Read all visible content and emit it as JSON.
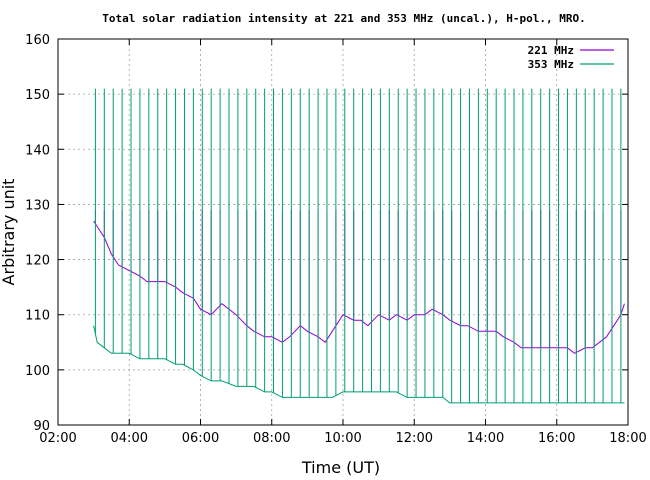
{
  "chart_data": {
    "type": "line",
    "title": "Total solar radiation intensity at 221 and 353 MHz (uncal.), H-pol., MRO.",
    "xlabel": "Time (UT)",
    "ylabel": "Arbitrary unit",
    "xlim_hours": [
      2,
      18
    ],
    "ylim": [
      90,
      160
    ],
    "x_ticks": [
      "02:00",
      "04:00",
      "06:00",
      "08:00",
      "10:00",
      "12:00",
      "14:00",
      "16:00",
      "18:00"
    ],
    "y_ticks": [
      90,
      100,
      110,
      120,
      130,
      140,
      150,
      160
    ],
    "grid": true,
    "legend_position": "top-right",
    "series": [
      {
        "name": "221 MHz",
        "color": "#9400d3",
        "x_hours": [
          3.0,
          3.1,
          3.3,
          3.5,
          3.7,
          4.0,
          4.3,
          4.5,
          5.0,
          5.3,
          5.5,
          5.8,
          6.0,
          6.3,
          6.6,
          7.0,
          7.3,
          7.5,
          7.8,
          8.0,
          8.3,
          8.5,
          8.8,
          9.0,
          9.3,
          9.5,
          9.7,
          10.0,
          10.3,
          10.5,
          10.7,
          11.0,
          11.3,
          11.5,
          11.8,
          12.0,
          12.3,
          12.5,
          12.8,
          13.0,
          13.3,
          13.5,
          13.8,
          14.0,
          14.3,
          14.5,
          14.8,
          15.0,
          15.3,
          15.5,
          15.8,
          16.0,
          16.3,
          16.5,
          16.8,
          17.0,
          17.2,
          17.4,
          17.6,
          17.8,
          17.9
        ],
        "values": [
          127,
          126,
          124,
          121,
          119,
          118,
          117,
          116,
          116,
          115,
          114,
          113,
          111,
          110,
          112,
          110,
          108,
          107,
          106,
          106,
          105,
          106,
          108,
          107,
          106,
          105,
          107,
          110,
          109,
          109,
          108,
          110,
          109,
          110,
          109,
          110,
          110,
          111,
          110,
          109,
          108,
          108,
          107,
          107,
          107,
          106,
          105,
          104,
          104,
          104,
          104,
          104,
          104,
          103,
          104,
          104,
          105,
          106,
          108,
          110,
          112
        ],
        "spike_peak": 129
      },
      {
        "name": "353 MHz",
        "color": "#009e73",
        "x_hours": [
          3.0,
          3.1,
          3.3,
          3.5,
          3.7,
          4.0,
          4.3,
          4.5,
          5.0,
          5.3,
          5.5,
          5.8,
          6.0,
          6.3,
          6.6,
          7.0,
          7.3,
          7.5,
          7.8,
          8.0,
          8.3,
          8.5,
          8.8,
          9.0,
          9.3,
          9.5,
          9.7,
          10.0,
          10.3,
          10.5,
          10.7,
          11.0,
          11.3,
          11.5,
          11.8,
          12.0,
          12.3,
          12.5,
          12.8,
          13.0,
          13.3,
          13.5,
          13.8,
          14.0,
          14.3,
          14.5,
          14.8,
          15.0,
          15.3,
          15.5,
          15.8,
          16.0,
          16.3,
          16.5,
          16.8,
          17.0,
          17.2,
          17.4,
          17.6,
          17.8,
          17.9
        ],
        "values": [
          108,
          105,
          104,
          103,
          103,
          103,
          102,
          102,
          102,
          101,
          101,
          100,
          99,
          98,
          98,
          97,
          97,
          97,
          96,
          96,
          95,
          95,
          95,
          95,
          95,
          95,
          95,
          96,
          96,
          96,
          96,
          96,
          96,
          96,
          95,
          95,
          95,
          95,
          95,
          94,
          94,
          94,
          94,
          94,
          94,
          94,
          94,
          94,
          94,
          94,
          94,
          94,
          94,
          94,
          94,
          94,
          94,
          94,
          94,
          94,
          94
        ],
        "spike_peak": 151
      }
    ],
    "calibration_spikes_hours": [
      3.05,
      3.3,
      3.55,
      3.8,
      4.05,
      4.3,
      4.55,
      4.8,
      5.05,
      5.3,
      5.55,
      5.8,
      6.05,
      6.3,
      6.55,
      6.8,
      7.05,
      7.3,
      7.55,
      7.8,
      8.05,
      8.3,
      8.55,
      8.8,
      9.05,
      9.3,
      9.55,
      9.8,
      10.05,
      10.3,
      10.55,
      10.8,
      11.05,
      11.3,
      11.55,
      11.8,
      12.05,
      12.3,
      12.55,
      12.8,
      13.05,
      13.3,
      13.55,
      13.8,
      14.05,
      14.3,
      14.55,
      14.8,
      15.05,
      15.3,
      15.55,
      15.8,
      16.05,
      16.3,
      16.55,
      16.8,
      17.05,
      17.3,
      17.55,
      17.8
    ]
  }
}
